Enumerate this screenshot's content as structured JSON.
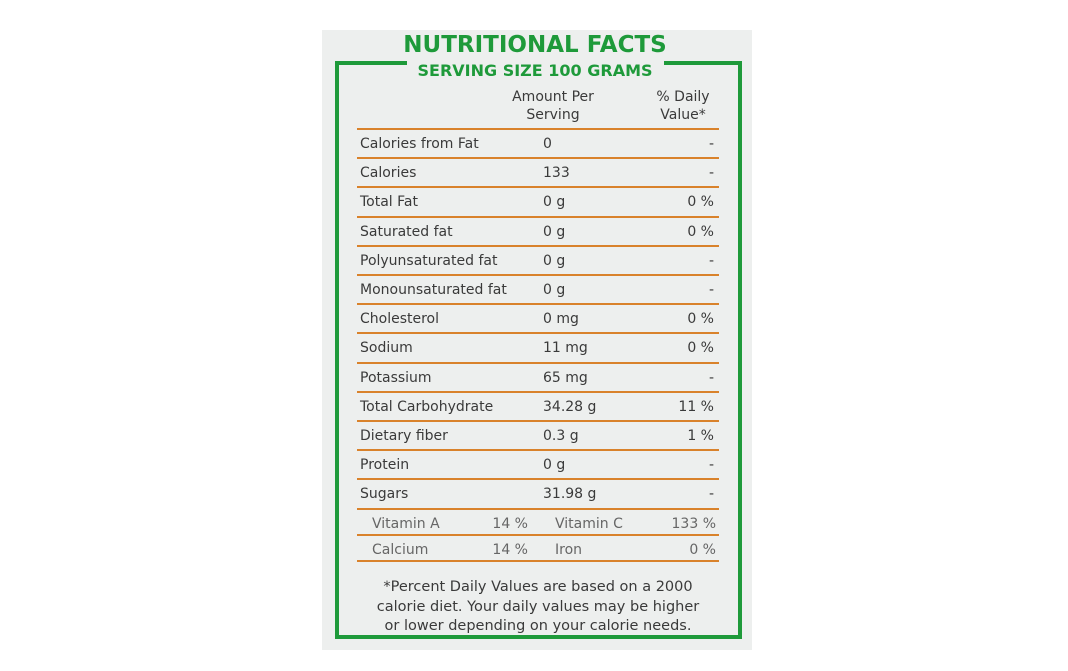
{
  "header": {
    "title": "NUTRITIONAL FACTS",
    "subtitle": "SERVING SIZE 100 GRAMS"
  },
  "table": {
    "columns": [
      [
        "Amount Per",
        "Serving"
      ],
      [
        "% Daily",
        "Value*"
      ]
    ],
    "rows": [
      [
        "Calories from Fat",
        "0",
        "-"
      ],
      [
        "Calories",
        "133",
        "-"
      ],
      [
        "Total Fat",
        "0 g",
        "0 %"
      ],
      [
        "Saturated fat",
        "0 g",
        "0 %"
      ],
      [
        "Polyunsaturated fat",
        "0 g",
        "-"
      ],
      [
        "Monounsaturated fat",
        "0 g",
        "-"
      ],
      [
        "Cholesterol",
        "0 mg",
        "0 %"
      ],
      [
        "Sodium",
        "11 mg",
        "0 %"
      ],
      [
        "Potassium",
        "65 mg",
        "-"
      ],
      [
        "Total Carbohydrate",
        "34.28 g",
        "11 %"
      ],
      [
        "Dietary fiber",
        "0.3 g",
        "1 %"
      ],
      [
        "Protein",
        "0 g",
        "-"
      ],
      [
        "Sugars",
        "31.98 g",
        "-"
      ]
    ],
    "vitamins": [
      [
        "Vitamin A",
        "14 %",
        "Vitamin C",
        "133 %"
      ],
      [
        "Calcium",
        "14 %",
        "Iron",
        "0 %"
      ]
    ]
  },
  "footnote": [
    "*Percent Daily Values are based on a 2000",
    "calorie diet. Your daily values may be higher",
    "or lower depending on your calorie needs."
  ]
}
